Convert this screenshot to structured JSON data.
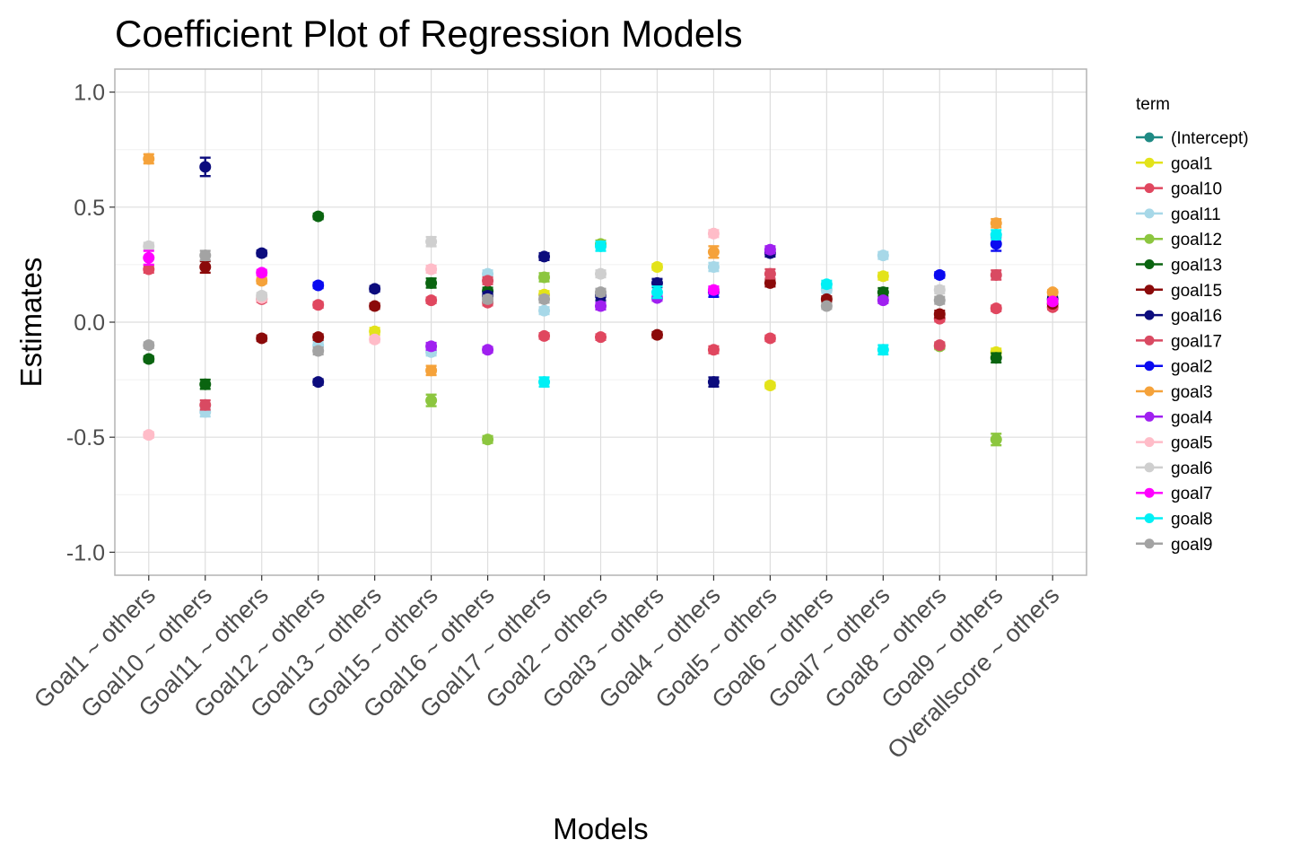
{
  "chart_data": {
    "type": "scatter",
    "title": "Coefficient Plot of Regression Models",
    "xlabel": "Models",
    "ylabel": "Estimates",
    "ylim": [
      -1.1,
      1.1
    ],
    "yticks": [
      1.0,
      0.5,
      0.0,
      -0.5,
      -1.0
    ],
    "ytick_labels": [
      "1.0",
      "0.5",
      "0.0",
      "-0.5",
      "-1.0"
    ],
    "grid": true,
    "legend_position": "right",
    "legend_title": "term",
    "categories": [
      "Goal1 ~ others",
      "Goal10 ~ others",
      "Goal11 ~ others",
      "Goal12 ~ others",
      "Goal13 ~ others",
      "Goal15 ~ others",
      "Goal16 ~ others",
      "Goal17 ~ others",
      "Goal2 ~ others",
      "Goal3 ~ others",
      "Goal4 ~ others",
      "Goal5 ~ others",
      "Goal6 ~ others",
      "Goal7 ~ others",
      "Goal8 ~ others",
      "Goal9 ~ others",
      "Overallscore ~ others"
    ],
    "series": [
      {
        "name": "(Intercept)",
        "color": "#1f8a84",
        "points": []
      },
      {
        "name": "goal1",
        "color": "#e3e31a",
        "points": [
          {
            "x": "Goal13 ~ others",
            "y": -0.04,
            "err": 0.015
          },
          {
            "x": "Goal17 ~ others",
            "y": 0.12,
            "err": 0.015
          },
          {
            "x": "Goal3 ~ others",
            "y": 0.24,
            "err": 0.012
          },
          {
            "x": "Goal5 ~ others",
            "y": -0.275,
            "err": 0.012
          },
          {
            "x": "Goal7 ~ others",
            "y": 0.2,
            "err": 0.015
          },
          {
            "x": "Goal9 ~ others",
            "y": -0.13,
            "err": 0.015
          }
        ]
      },
      {
        "name": "goal10",
        "color": "#e0475f",
        "points": [
          {
            "x": "Goal1 ~ others",
            "y": 0.23,
            "err": 0.015
          },
          {
            "x": "Goal11 ~ others",
            "y": 0.1,
            "err": 0.012
          },
          {
            "x": "Goal12 ~ others",
            "y": 0.075,
            "err": 0.012
          },
          {
            "x": "Goal15 ~ others",
            "y": 0.095,
            "err": 0.012
          },
          {
            "x": "Goal16 ~ others",
            "y": 0.085,
            "err": 0.012
          },
          {
            "x": "Goal17 ~ others",
            "y": -0.06,
            "err": 0.012
          },
          {
            "x": "Goal2 ~ others",
            "y": -0.065,
            "err": 0.012
          },
          {
            "x": "Goal4 ~ others",
            "y": -0.12,
            "err": 0.015
          },
          {
            "x": "Goal5 ~ others",
            "y": -0.07,
            "err": 0.012
          },
          {
            "x": "Goal8 ~ others",
            "y": 0.015,
            "err": 0.012
          },
          {
            "x": "Goal9 ~ others",
            "y": 0.06,
            "err": 0.012
          },
          {
            "x": "Overallscore ~ others",
            "y": 0.065,
            "err": 0.01
          }
        ]
      },
      {
        "name": "goal11",
        "color": "#a7d8e8",
        "points": [
          {
            "x": "Goal10 ~ others",
            "y": -0.39,
            "err": 0.02
          },
          {
            "x": "Goal12 ~ others",
            "y": -0.1,
            "err": 0.015
          },
          {
            "x": "Goal15 ~ others",
            "y": -0.13,
            "err": 0.015
          },
          {
            "x": "Goal16 ~ others",
            "y": 0.21,
            "err": 0.015
          },
          {
            "x": "Goal17 ~ others",
            "y": 0.05,
            "err": 0.015
          },
          {
            "x": "Goal4 ~ others",
            "y": 0.24,
            "err": 0.018
          },
          {
            "x": "Goal6 ~ others",
            "y": 0.14,
            "err": 0.012
          },
          {
            "x": "Goal7 ~ others",
            "y": 0.29,
            "err": 0.015
          }
        ]
      },
      {
        "name": "goal12",
        "color": "#8cc63f",
        "points": [
          {
            "x": "Goal15 ~ others",
            "y": -0.34,
            "err": 0.025
          },
          {
            "x": "Goal16 ~ others",
            "y": -0.51,
            "err": 0.015
          },
          {
            "x": "Goal17 ~ others",
            "y": 0.195,
            "err": 0.018
          },
          {
            "x": "Goal2 ~ others",
            "y": 0.34,
            "err": 0.015
          },
          {
            "x": "Goal8 ~ others",
            "y": -0.105,
            "err": 0.012
          },
          {
            "x": "Goal9 ~ others",
            "y": -0.51,
            "err": 0.025
          }
        ]
      },
      {
        "name": "goal13",
        "color": "#0a6410",
        "points": [
          {
            "x": "Goal1 ~ others",
            "y": -0.16,
            "err": 0.012
          },
          {
            "x": "Goal10 ~ others",
            "y": -0.27,
            "err": 0.02
          },
          {
            "x": "Goal12 ~ others",
            "y": 0.46,
            "err": 0.012
          },
          {
            "x": "Goal15 ~ others",
            "y": 0.17,
            "err": 0.02
          },
          {
            "x": "Goal16 ~ others",
            "y": 0.135,
            "err": 0.015
          },
          {
            "x": "Goal7 ~ others",
            "y": 0.13,
            "err": 0.018
          },
          {
            "x": "Goal9 ~ others",
            "y": -0.155,
            "err": 0.02
          }
        ]
      },
      {
        "name": "goal15",
        "color": "#8b0a0a",
        "points": [
          {
            "x": "Goal10 ~ others",
            "y": 0.24,
            "err": 0.025
          },
          {
            "x": "Goal11 ~ others",
            "y": -0.07,
            "err": 0.012
          },
          {
            "x": "Goal12 ~ others",
            "y": -0.065,
            "err": 0.012
          },
          {
            "x": "Goal13 ~ others",
            "y": 0.07,
            "err": 0.012
          },
          {
            "x": "Goal3 ~ others",
            "y": -0.055,
            "err": 0.012
          },
          {
            "x": "Goal5 ~ others",
            "y": 0.17,
            "err": 0.015
          },
          {
            "x": "Goal6 ~ others",
            "y": 0.1,
            "err": 0.012
          },
          {
            "x": "Goal8 ~ others",
            "y": 0.035,
            "err": 0.015
          },
          {
            "x": "Overallscore ~ others",
            "y": 0.08,
            "err": 0.01
          }
        ]
      },
      {
        "name": "goal16",
        "color": "#0c0c7d",
        "points": [
          {
            "x": "Goal10 ~ others",
            "y": 0.675,
            "err": 0.04
          },
          {
            "x": "Goal11 ~ others",
            "y": 0.3,
            "err": 0.012
          },
          {
            "x": "Goal12 ~ others",
            "y": -0.26,
            "err": 0.012
          },
          {
            "x": "Goal13 ~ others",
            "y": 0.145,
            "err": 0.012
          },
          {
            "x": "Goal16 ~ others",
            "y": 0.115,
            "err": 0.015
          },
          {
            "x": "Goal17 ~ others",
            "y": 0.285,
            "err": 0.015
          },
          {
            "x": "Goal2 ~ others",
            "y": 0.115,
            "err": 0.02
          },
          {
            "x": "Goal3 ~ others",
            "y": 0.17,
            "err": 0.018
          },
          {
            "x": "Goal4 ~ others",
            "y": -0.26,
            "err": 0.02
          },
          {
            "x": "Goal5 ~ others",
            "y": 0.3,
            "err": 0.015
          },
          {
            "x": "Overallscore ~ others",
            "y": 0.1,
            "err": 0.01
          }
        ]
      },
      {
        "name": "goal17",
        "color": "#d94a62",
        "points": [
          {
            "x": "Goal10 ~ others",
            "y": -0.36,
            "err": 0.02
          },
          {
            "x": "Goal16 ~ others",
            "y": 0.18,
            "err": 0.015
          },
          {
            "x": "Goal5 ~ others",
            "y": 0.21,
            "err": 0.02
          },
          {
            "x": "Goal8 ~ others",
            "y": -0.1,
            "err": 0.012
          },
          {
            "x": "Goal9 ~ others",
            "y": 0.205,
            "err": 0.02
          }
        ]
      },
      {
        "name": "goal2",
        "color": "#0a0af0",
        "points": [
          {
            "x": "Goal12 ~ others",
            "y": 0.16,
            "err": 0.012
          },
          {
            "x": "Goal4 ~ others",
            "y": 0.13,
            "err": 0.02
          },
          {
            "x": "Goal8 ~ others",
            "y": 0.205,
            "err": 0.012
          },
          {
            "x": "Goal9 ~ others",
            "y": 0.34,
            "err": 0.03
          }
        ]
      },
      {
        "name": "goal3",
        "color": "#f5a23a",
        "points": [
          {
            "x": "Goal1 ~ others",
            "y": 0.71,
            "err": 0.02
          },
          {
            "x": "Goal11 ~ others",
            "y": 0.18,
            "err": 0.012
          },
          {
            "x": "Goal15 ~ others",
            "y": -0.21,
            "err": 0.02
          },
          {
            "x": "Goal4 ~ others",
            "y": 0.305,
            "err": 0.025
          },
          {
            "x": "Goal9 ~ others",
            "y": 0.43,
            "err": 0.018
          },
          {
            "x": "Overallscore ~ others",
            "y": 0.13,
            "err": 0.01
          }
        ]
      },
      {
        "name": "goal4",
        "color": "#a020f0",
        "points": [
          {
            "x": "Goal15 ~ others",
            "y": -0.105,
            "err": 0.015
          },
          {
            "x": "Goal16 ~ others",
            "y": -0.12,
            "err": 0.012
          },
          {
            "x": "Goal2 ~ others",
            "y": 0.07,
            "err": 0.015
          },
          {
            "x": "Goal3 ~ others",
            "y": 0.105,
            "err": 0.012
          },
          {
            "x": "Goal5 ~ others",
            "y": 0.315,
            "err": 0.015
          },
          {
            "x": "Goal7 ~ others",
            "y": 0.095,
            "err": 0.012
          }
        ]
      },
      {
        "name": "goal5",
        "color": "#ffbcc8",
        "points": [
          {
            "x": "Goal1 ~ others",
            "y": -0.49,
            "err": 0.012
          },
          {
            "x": "Goal11 ~ others",
            "y": 0.105,
            "err": 0.012
          },
          {
            "x": "Goal13 ~ others",
            "y": -0.075,
            "err": 0.012
          },
          {
            "x": "Goal15 ~ others",
            "y": 0.23,
            "err": 0.015
          },
          {
            "x": "Goal4 ~ others",
            "y": 0.385,
            "err": 0.015
          }
        ]
      },
      {
        "name": "goal6",
        "color": "#cfcfcf",
        "points": [
          {
            "x": "Goal1 ~ others",
            "y": 0.33,
            "err": 0.015
          },
          {
            "x": "Goal11 ~ others",
            "y": 0.115,
            "err": 0.012
          },
          {
            "x": "Goal15 ~ others",
            "y": 0.35,
            "err": 0.02
          },
          {
            "x": "Goal2 ~ others",
            "y": 0.21,
            "err": 0.015
          },
          {
            "x": "Goal8 ~ others",
            "y": 0.14,
            "err": 0.015
          }
        ]
      },
      {
        "name": "goal7",
        "color": "#ff00ff",
        "points": [
          {
            "x": "Goal1 ~ others",
            "y": 0.28,
            "err": 0.03
          },
          {
            "x": "Goal11 ~ others",
            "y": 0.215,
            "err": 0.012
          },
          {
            "x": "Goal4 ~ others",
            "y": 0.14,
            "err": 0.015
          },
          {
            "x": "Overallscore ~ others",
            "y": 0.09,
            "err": 0.01
          }
        ]
      },
      {
        "name": "goal8",
        "color": "#00f0f5",
        "points": [
          {
            "x": "Goal17 ~ others",
            "y": -0.26,
            "err": 0.02
          },
          {
            "x": "Goal2 ~ others",
            "y": 0.33,
            "err": 0.02
          },
          {
            "x": "Goal3 ~ others",
            "y": 0.13,
            "err": 0.025
          },
          {
            "x": "Goal6 ~ others",
            "y": 0.165,
            "err": 0.015
          },
          {
            "x": "Goal7 ~ others",
            "y": -0.12,
            "err": 0.02
          },
          {
            "x": "Goal9 ~ others",
            "y": 0.38,
            "err": 0.02
          }
        ]
      },
      {
        "name": "goal9",
        "color": "#a3a3a3",
        "points": [
          {
            "x": "Goal1 ~ others",
            "y": -0.1,
            "err": 0.012
          },
          {
            "x": "Goal10 ~ others",
            "y": 0.29,
            "err": 0.02
          },
          {
            "x": "Goal12 ~ others",
            "y": -0.125,
            "err": 0.015
          },
          {
            "x": "Goal16 ~ others",
            "y": 0.1,
            "err": 0.015
          },
          {
            "x": "Goal17 ~ others",
            "y": 0.1,
            "err": 0.015
          },
          {
            "x": "Goal2 ~ others",
            "y": 0.13,
            "err": 0.015
          },
          {
            "x": "Goal6 ~ others",
            "y": 0.07,
            "err": 0.012
          },
          {
            "x": "Goal8 ~ others",
            "y": 0.095,
            "err": 0.015
          }
        ]
      }
    ]
  }
}
